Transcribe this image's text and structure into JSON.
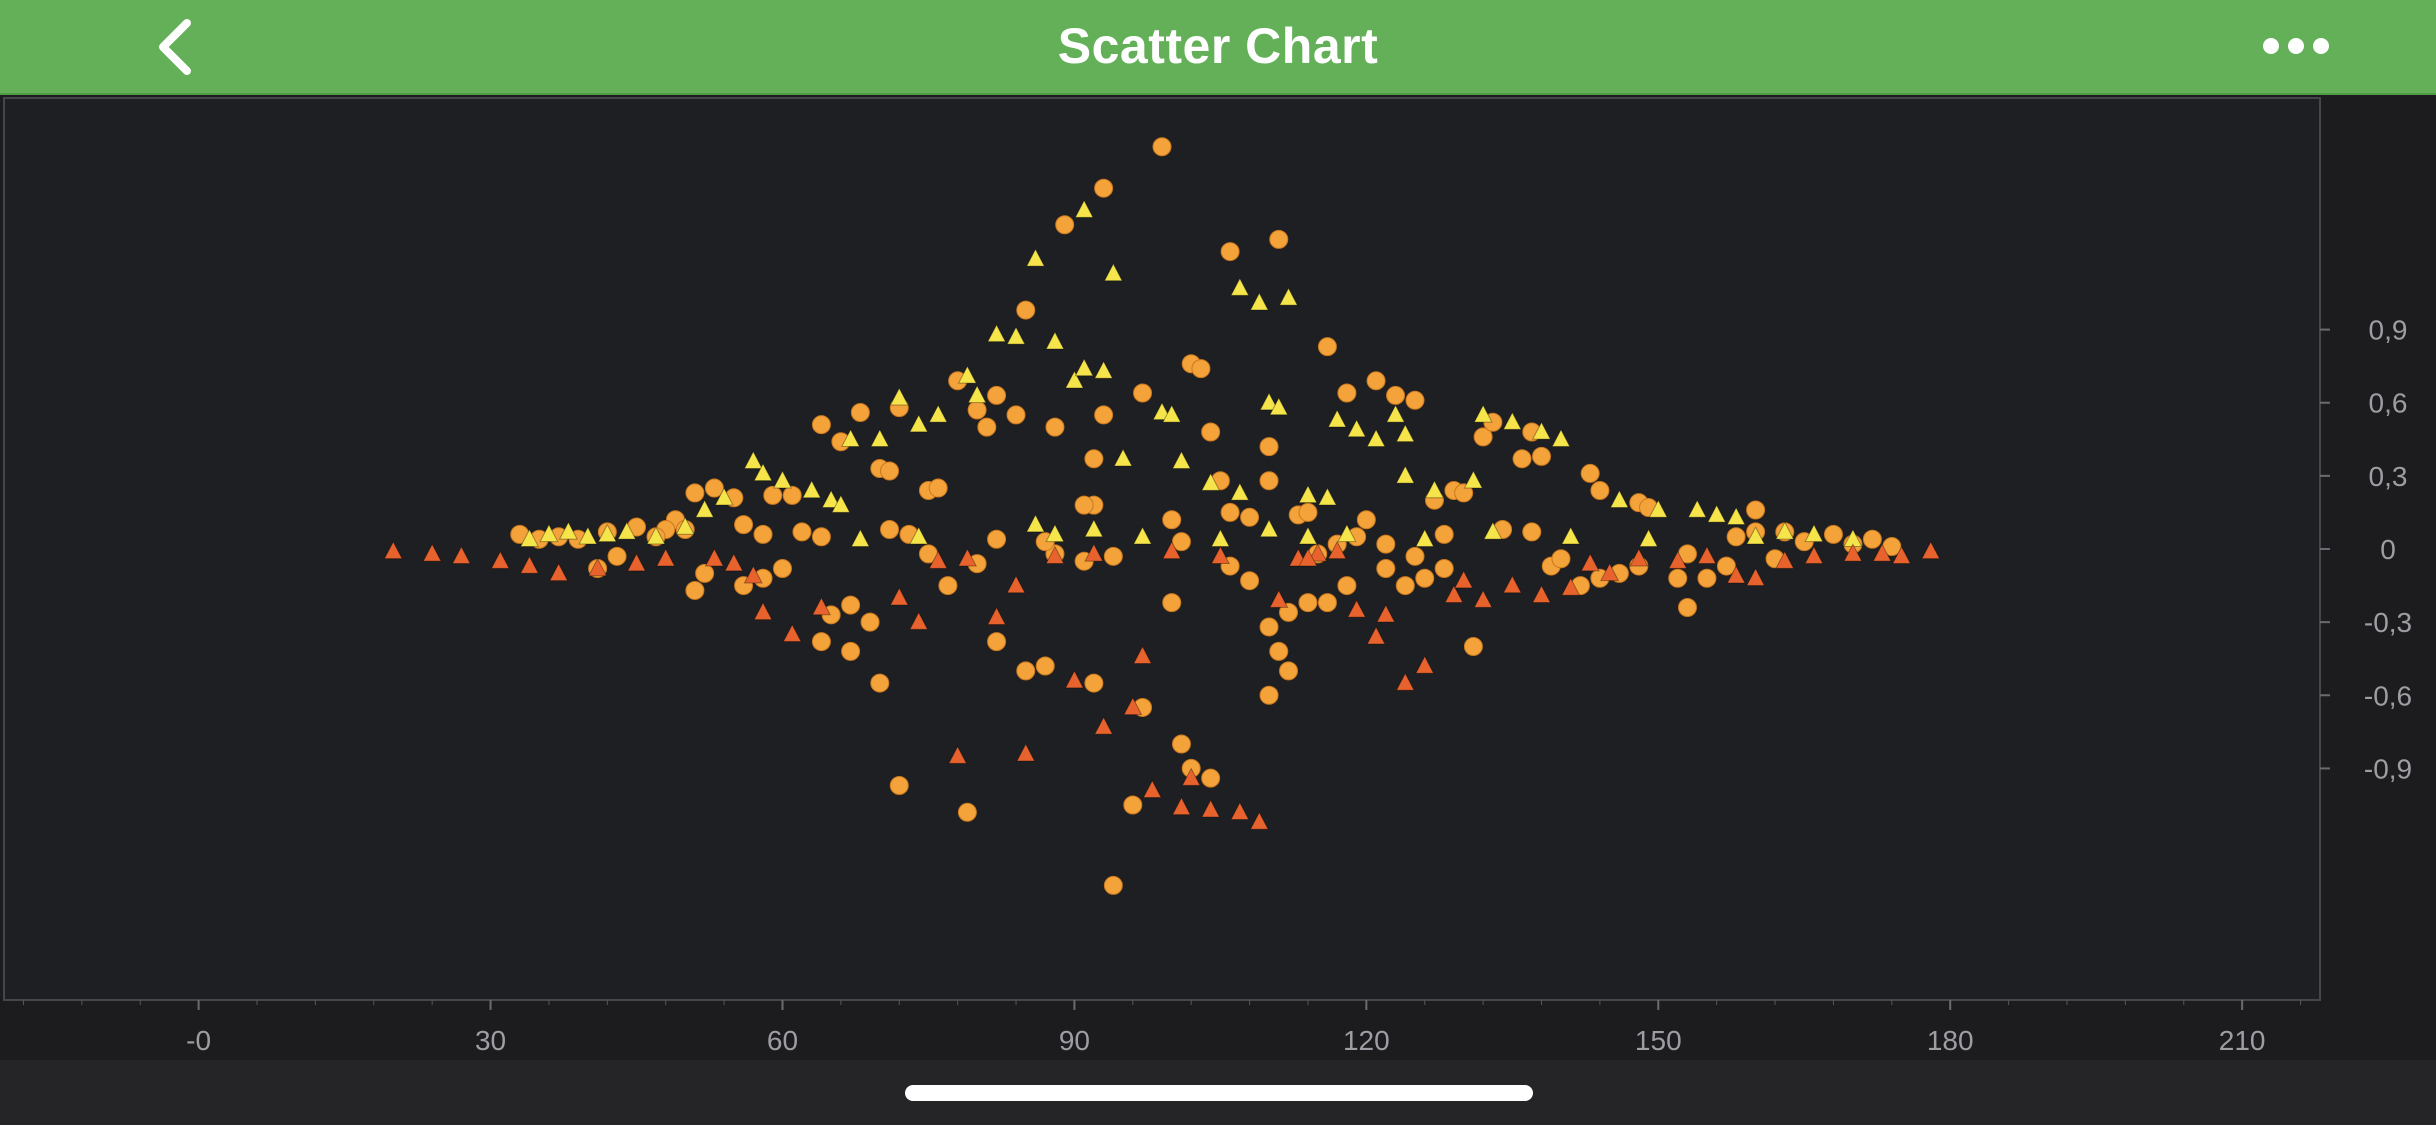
{
  "app_bar": {
    "title": "Scatter Chart",
    "background": "#63b058",
    "back_icon": "chevron-left-icon",
    "more_icon": "more-horizontal-icon"
  },
  "chart_data": {
    "type": "scatter",
    "title": "",
    "xlabel": "",
    "ylabel": "",
    "xlim": [
      -20,
      218
    ],
    "ylim": [
      -1.85,
      1.85
    ],
    "x_ticks": [
      0,
      30,
      60,
      90,
      120,
      150,
      180,
      210
    ],
    "x_tick_labels": [
      "-0",
      "30",
      "60",
      "90",
      "120",
      "150",
      "180",
      "210"
    ],
    "y_ticks": [
      0.9,
      0.6,
      0.3,
      0,
      -0.3,
      -0.6,
      -0.9
    ],
    "y_tick_labels": [
      "0,9",
      "0,6",
      "0,3",
      "0",
      "-0,3",
      "-0,6",
      "-0,9"
    ],
    "grid": true,
    "legend": "none",
    "background": "#1c1c1e",
    "series": [
      {
        "marker": "circle",
        "color": "#f4a33a",
        "points": [
          [
            99,
            1.65
          ],
          [
            93,
            1.48
          ],
          [
            89,
            1.33
          ],
          [
            111,
            1.27
          ],
          [
            106,
            1.22
          ],
          [
            85,
            0.98
          ],
          [
            116,
            0.83
          ],
          [
            121,
            0.69
          ],
          [
            102,
            0.76
          ],
          [
            103,
            0.74
          ],
          [
            78,
            0.69
          ],
          [
            123,
            0.63
          ],
          [
            82,
            0.63
          ],
          [
            125,
            0.61
          ],
          [
            118,
            0.64
          ],
          [
            97,
            0.64
          ],
          [
            80,
            0.57
          ],
          [
            93,
            0.55
          ],
          [
            84,
            0.55
          ],
          [
            72,
            0.58
          ],
          [
            68,
            0.56
          ],
          [
            81,
            0.5
          ],
          [
            64,
            0.51
          ],
          [
            66,
            0.44
          ],
          [
            88,
            0.5
          ],
          [
            104,
            0.48
          ],
          [
            137,
            0.48
          ],
          [
            132,
            0.46
          ],
          [
            110,
            0.42
          ],
          [
            138,
            0.38
          ],
          [
            136,
            0.37
          ],
          [
            92,
            0.37
          ],
          [
            70,
            0.33
          ],
          [
            71,
            0.32
          ],
          [
            75,
            0.24
          ],
          [
            76,
            0.25
          ],
          [
            92,
            0.18
          ],
          [
            91,
            0.18
          ],
          [
            113,
            0.14
          ],
          [
            114,
            0.15
          ],
          [
            106,
            0.15
          ],
          [
            108,
            0.13
          ],
          [
            110,
            0.28
          ],
          [
            105,
            0.28
          ],
          [
            129,
            0.24
          ],
          [
            130,
            0.23
          ],
          [
            127,
            0.2
          ],
          [
            143,
            0.31
          ],
          [
            144,
            0.24
          ],
          [
            148,
            0.19
          ],
          [
            149,
            0.17
          ],
          [
            160,
            0.16
          ],
          [
            51,
            0.23
          ],
          [
            53,
            0.25
          ],
          [
            55,
            0.21
          ],
          [
            59,
            0.22
          ],
          [
            61,
            0.22
          ],
          [
            49,
            0.12
          ],
          [
            50,
            0.08
          ],
          [
            48,
            0.08
          ],
          [
            120,
            0.12
          ],
          [
            122,
            0.02
          ],
          [
            100,
            0.12
          ],
          [
            137,
            0.07
          ],
          [
            139,
            -0.07
          ],
          [
            128,
            -0.08
          ],
          [
            118,
            -0.15
          ],
          [
            116,
            -0.22
          ],
          [
            114,
            -0.22
          ],
          [
            112,
            -0.26
          ],
          [
            108,
            -0.13
          ],
          [
            110,
            -0.32
          ],
          [
            111,
            -0.42
          ],
          [
            112,
            -0.5
          ],
          [
            110,
            -0.6
          ],
          [
            100,
            -0.22
          ],
          [
            102,
            -0.9
          ],
          [
            104,
            -0.94
          ],
          [
            101,
            -0.8
          ],
          [
            97,
            -0.65
          ],
          [
            96,
            -1.05
          ],
          [
            94,
            -1.38
          ],
          [
            92,
            -0.55
          ],
          [
            87,
            -0.48
          ],
          [
            85,
            -0.5
          ],
          [
            82,
            -0.38
          ],
          [
            79,
            -1.08
          ],
          [
            72,
            -0.97
          ],
          [
            70,
            -0.55
          ],
          [
            67,
            -0.42
          ],
          [
            65,
            -0.27
          ],
          [
            69,
            -0.3
          ],
          [
            64,
            -0.38
          ],
          [
            67,
            -0.23
          ],
          [
            75,
            -0.02
          ],
          [
            77,
            -0.15
          ],
          [
            80,
            -0.06
          ],
          [
            88,
            -0.02
          ],
          [
            91,
            -0.05
          ],
          [
            94,
            -0.03
          ],
          [
            106,
            -0.07
          ],
          [
            115,
            -0.02
          ],
          [
            122,
            -0.08
          ],
          [
            126,
            -0.12
          ],
          [
            140,
            -0.04
          ],
          [
            146,
            -0.1
          ],
          [
            152,
            -0.12
          ],
          [
            157,
            -0.07
          ],
          [
            162,
            -0.04
          ],
          [
            153,
            -0.02
          ],
          [
            51,
            -0.17
          ],
          [
            52,
            -0.1
          ],
          [
            56,
            -0.15
          ],
          [
            58,
            -0.12
          ],
          [
            60,
            -0.08
          ],
          [
            41,
            -0.08
          ],
          [
            43,
            -0.03
          ],
          [
            125,
            -0.03
          ],
          [
            153,
            -0.24
          ],
          [
            155,
            -0.12
          ],
          [
            131,
            -0.4
          ],
          [
            133,
            0.52
          ],
          [
            124,
            -0.15
          ],
          [
            142,
            -0.15
          ],
          [
            144,
            -0.12
          ],
          [
            148,
            -0.07
          ],
          [
            158,
            0.05
          ],
          [
            160,
            0.07
          ],
          [
            163,
            0.07
          ],
          [
            165,
            0.03
          ],
          [
            168,
            0.06
          ],
          [
            170,
            0.02
          ],
          [
            172,
            0.04
          ],
          [
            174,
            0.01
          ],
          [
            128,
            0.06
          ],
          [
            134,
            0.08
          ],
          [
            56,
            0.1
          ],
          [
            58,
            0.06
          ],
          [
            62,
            0.07
          ],
          [
            64,
            0.05
          ],
          [
            71,
            0.08
          ],
          [
            73,
            0.06
          ],
          [
            82,
            0.04
          ],
          [
            87,
            0.03
          ],
          [
            101,
            0.03
          ],
          [
            117,
            0.02
          ],
          [
            119,
            0.05
          ],
          [
            33,
            0.06
          ],
          [
            35,
            0.04
          ],
          [
            37,
            0.05
          ],
          [
            39,
            0.04
          ],
          [
            42,
            0.07
          ],
          [
            45,
            0.09
          ],
          [
            47,
            0.05
          ]
        ]
      },
      {
        "marker": "triangle-up",
        "color": "#f5e44a",
        "points": [
          [
            91,
            1.39
          ],
          [
            86,
            1.19
          ],
          [
            94,
            1.13
          ],
          [
            107,
            1.07
          ],
          [
            109,
            1.01
          ],
          [
            112,
            1.03
          ],
          [
            82,
            0.88
          ],
          [
            84,
            0.87
          ],
          [
            88,
            0.85
          ],
          [
            79,
            0.71
          ],
          [
            90,
            0.69
          ],
          [
            91,
            0.74
          ],
          [
            93,
            0.73
          ],
          [
            76,
            0.55
          ],
          [
            72,
            0.62
          ],
          [
            74,
            0.51
          ],
          [
            70,
            0.45
          ],
          [
            67,
            0.45
          ],
          [
            80,
            0.63
          ],
          [
            99,
            0.56
          ],
          [
            100,
            0.55
          ],
          [
            110,
            0.6
          ],
          [
            111,
            0.58
          ],
          [
            117,
            0.53
          ],
          [
            119,
            0.49
          ],
          [
            123,
            0.55
          ],
          [
            124,
            0.47
          ],
          [
            121,
            0.45
          ],
          [
            132,
            0.55
          ],
          [
            135,
            0.52
          ],
          [
            138,
            0.48
          ],
          [
            140,
            0.45
          ],
          [
            95,
            0.37
          ],
          [
            101,
            0.36
          ],
          [
            104,
            0.27
          ],
          [
            107,
            0.23
          ],
          [
            114,
            0.22
          ],
          [
            116,
            0.21
          ],
          [
            124,
            0.3
          ],
          [
            127,
            0.24
          ],
          [
            131,
            0.28
          ],
          [
            146,
            0.2
          ],
          [
            150,
            0.16
          ],
          [
            154,
            0.16
          ],
          [
            156,
            0.14
          ],
          [
            158,
            0.13
          ],
          [
            57,
            0.36
          ],
          [
            58,
            0.31
          ],
          [
            60,
            0.28
          ],
          [
            63,
            0.24
          ],
          [
            65,
            0.2
          ],
          [
            66,
            0.18
          ],
          [
            54,
            0.21
          ],
          [
            52,
            0.16
          ],
          [
            50,
            0.09
          ],
          [
            47,
            0.05
          ],
          [
            44,
            0.07
          ],
          [
            42,
            0.06
          ],
          [
            40,
            0.05
          ],
          [
            38,
            0.07
          ],
          [
            36,
            0.06
          ],
          [
            34,
            0.04
          ],
          [
            86,
            0.1
          ],
          [
            88,
            0.06
          ],
          [
            92,
            0.08
          ],
          [
            97,
            0.05
          ],
          [
            105,
            0.04
          ],
          [
            110,
            0.08
          ],
          [
            114,
            0.05
          ],
          [
            118,
            0.06
          ],
          [
            126,
            0.04
          ],
          [
            133,
            0.07
          ],
          [
            141,
            0.05
          ],
          [
            149,
            0.04
          ],
          [
            160,
            0.05
          ],
          [
            163,
            0.07
          ],
          [
            166,
            0.06
          ],
          [
            170,
            0.04
          ],
          [
            68,
            0.04
          ],
          [
            74,
            0.05
          ]
        ]
      },
      {
        "marker": "triangle-up",
        "color": "#e8622d",
        "points": [
          [
            107,
            -1.08
          ],
          [
            102,
            -0.94
          ],
          [
            96,
            -0.65
          ],
          [
            98,
            -0.99
          ],
          [
            101,
            -1.06
          ],
          [
            104,
            -1.07
          ],
          [
            109,
            -1.12
          ],
          [
            90,
            -0.54
          ],
          [
            93,
            -0.73
          ],
          [
            97,
            -0.44
          ],
          [
            85,
            -0.84
          ],
          [
            78,
            -0.85
          ],
          [
            74,
            -0.3
          ],
          [
            82,
            -0.28
          ],
          [
            84,
            -0.15
          ],
          [
            79,
            -0.04
          ],
          [
            64,
            -0.24
          ],
          [
            61,
            -0.35
          ],
          [
            58,
            -0.26
          ],
          [
            57,
            -0.11
          ],
          [
            55,
            -0.06
          ],
          [
            53,
            -0.04
          ],
          [
            48,
            -0.04
          ],
          [
            45,
            -0.06
          ],
          [
            41,
            -0.08
          ],
          [
            37,
            -0.1
          ],
          [
            34,
            -0.07
          ],
          [
            31,
            -0.05
          ],
          [
            27,
            -0.03
          ],
          [
            24,
            -0.02
          ],
          [
            20,
            -0.01
          ],
          [
            111,
            -0.21
          ],
          [
            113,
            -0.04
          ],
          [
            115,
            -0.02
          ],
          [
            117,
            -0.01
          ],
          [
            119,
            -0.25
          ],
          [
            121,
            -0.36
          ],
          [
            122,
            -0.27
          ],
          [
            124,
            -0.55
          ],
          [
            126,
            -0.48
          ],
          [
            129,
            -0.19
          ],
          [
            130,
            -0.13
          ],
          [
            132,
            -0.21
          ],
          [
            135,
            -0.15
          ],
          [
            138,
            -0.19
          ],
          [
            141,
            -0.16
          ],
          [
            143,
            -0.06
          ],
          [
            145,
            -0.1
          ],
          [
            148,
            -0.04
          ],
          [
            152,
            -0.05
          ],
          [
            155,
            -0.03
          ],
          [
            158,
            -0.11
          ],
          [
            160,
            -0.12
          ],
          [
            163,
            -0.05
          ],
          [
            166,
            -0.03
          ],
          [
            170,
            -0.02
          ],
          [
            173,
            -0.02
          ],
          [
            175,
            -0.03
          ],
          [
            178,
            -0.01
          ],
          [
            72,
            -0.2
          ],
          [
            76,
            -0.05
          ],
          [
            88,
            -0.03
          ],
          [
            92,
            -0.02
          ],
          [
            100,
            -0.01
          ],
          [
            105,
            -0.03
          ],
          [
            114,
            -0.04
          ]
        ]
      }
    ]
  }
}
